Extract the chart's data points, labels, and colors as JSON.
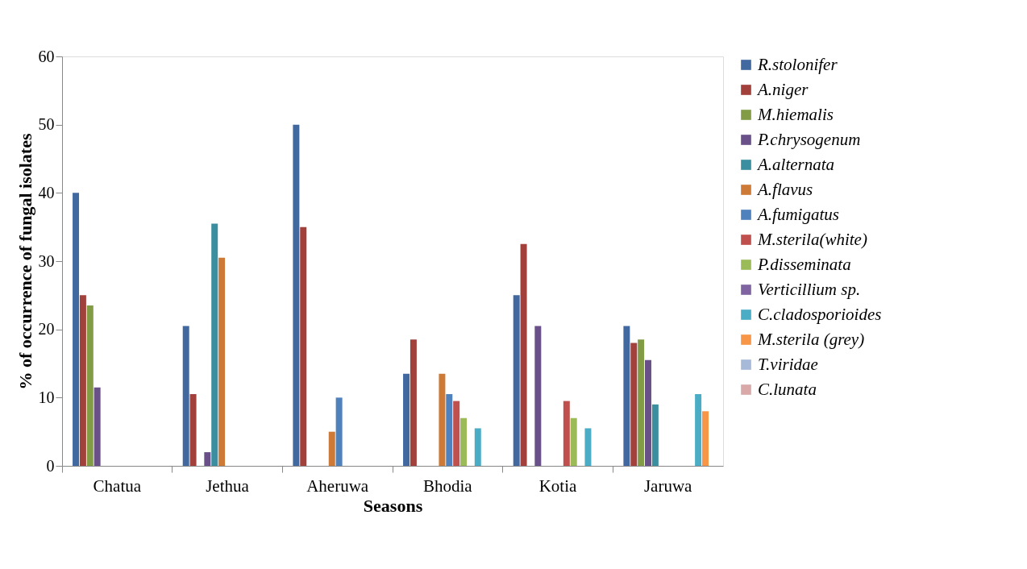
{
  "chart_data": {
    "type": "bar",
    "xlabel": "Seasons",
    "ylabel": "% of occurrence of fungal isolates",
    "categories": [
      "Chatua",
      "Jethua",
      "Aheruwa",
      "Bhodia",
      "Kotia",
      "Jaruwa"
    ],
    "ylim": [
      0,
      60
    ],
    "yticks": [
      0,
      10,
      20,
      30,
      40,
      50,
      60
    ],
    "grid": false,
    "legend": "right",
    "series": [
      {
        "name": "R.stolonifer",
        "color": "#4169a0",
        "values": [
          40,
          20.5,
          50,
          13.5,
          25,
          20.5
        ]
      },
      {
        "name": "A.niger",
        "color": "#a2403c",
        "values": [
          25,
          10.5,
          35,
          18.5,
          32.5,
          18
        ]
      },
      {
        "name": "M.hiemalis",
        "color": "#829c45",
        "values": [
          23.5,
          null,
          null,
          null,
          null,
          18.5
        ]
      },
      {
        "name": "P.chrysogenum",
        "color": "#6a5088",
        "values": [
          11.5,
          2,
          null,
          null,
          20.5,
          15.5
        ]
      },
      {
        "name": "A.alternata",
        "color": "#3a8ea0",
        "values": [
          null,
          35.5,
          null,
          null,
          null,
          9
        ]
      },
      {
        "name": "A.flavus",
        "color": "#cd7a37",
        "values": [
          null,
          30.5,
          5,
          13.5,
          null,
          null
        ]
      },
      {
        "name": "A.fumigatus",
        "color": "#4f81bd",
        "values": [
          null,
          null,
          10,
          10.5,
          null,
          null
        ]
      },
      {
        "name": "M.sterila(white)",
        "color": "#c0504d",
        "values": [
          null,
          null,
          null,
          9.5,
          9.5,
          null
        ]
      },
      {
        "name": "P.disseminata",
        "color": "#9bbb59",
        "values": [
          null,
          null,
          null,
          7,
          7,
          null
        ]
      },
      {
        "name": "Verticillium sp.",
        "color": "#8064a2",
        "values": [
          null,
          null,
          null,
          null,
          null,
          null
        ]
      },
      {
        "name": "C.cladosporioides",
        "color": "#4bacc6",
        "values": [
          null,
          null,
          null,
          5.5,
          5.5,
          10.5
        ]
      },
      {
        "name": "M.sterila (grey)",
        "color": "#f79646",
        "values": [
          null,
          null,
          null,
          null,
          null,
          8
        ]
      },
      {
        "name": "T.viridae",
        "color": "#a7b9d9",
        "values": [
          null,
          null,
          null,
          null,
          null,
          null
        ]
      },
      {
        "name": "C.lunata",
        "color": "#d9a8a8",
        "values": [
          null,
          null,
          null,
          null,
          null,
          null
        ]
      }
    ]
  }
}
